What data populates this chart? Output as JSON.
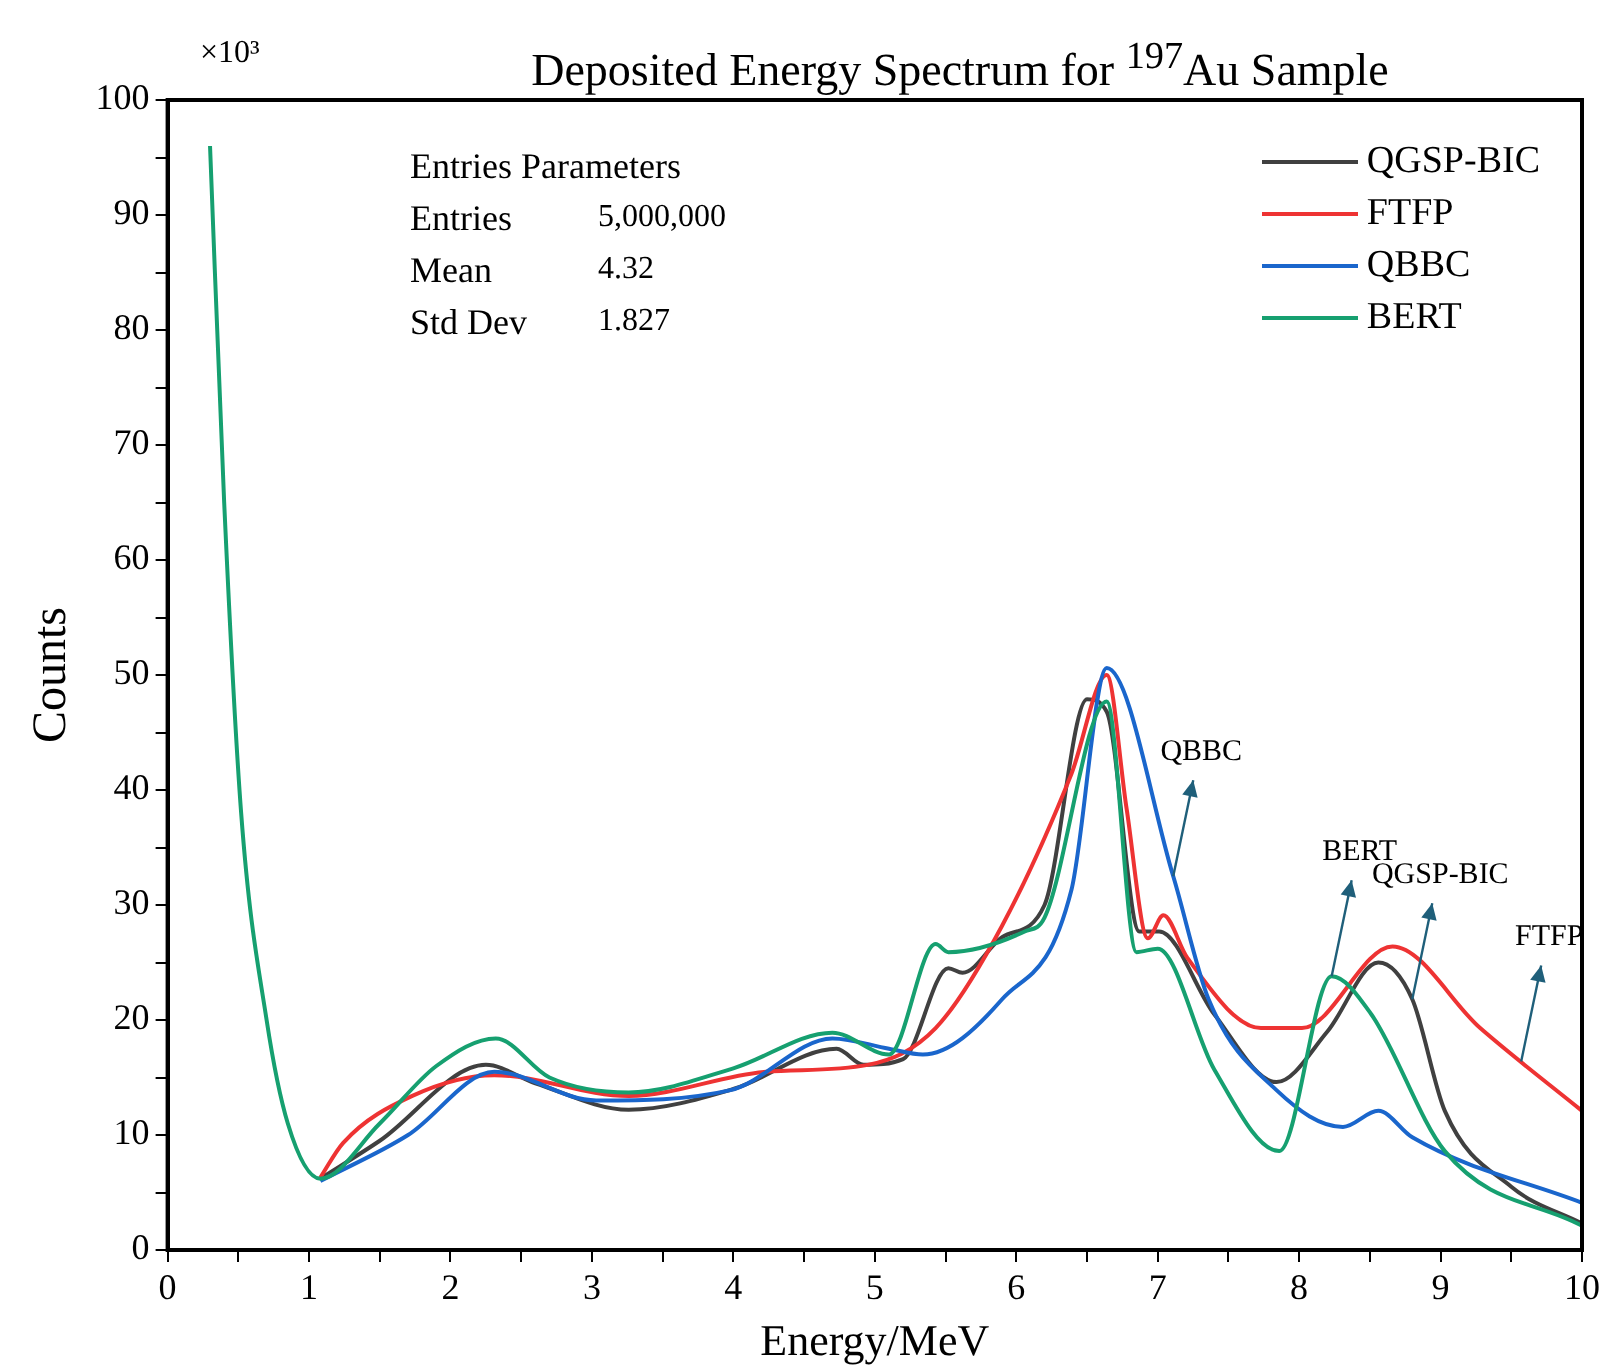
{
  "chart_data": {
    "type": "line",
    "title": "Deposited Energy Spectrum for $^{197}$Au Sample",
    "xlabel": "Energy/MeV",
    "ylabel": "Counts",
    "xlim": [
      0,
      10
    ],
    "xticks": [
      0,
      {
        "value": 0.5,
        "label": null
      },
      1,
      {
        "value": 1.5,
        "label": null
      },
      2,
      {
        "value": 2.5,
        "label": null
      },
      3,
      {
        "value": 3.5,
        "label": null
      },
      4,
      {
        "value": 4.5,
        "label": null
      },
      5,
      {
        "value": 5.5,
        "label": null
      },
      6,
      {
        "value": 6.5,
        "label": null
      },
      7,
      {
        "value": 7.5,
        "label": null
      },
      8,
      {
        "value": 8.5,
        "label": null
      },
      9,
      {
        "value": 9.5,
        "label": null
      },
      10
    ],
    "ylim": [
      0,
      100
    ],
    "yticks": [
      0,
      {
        "value": 5,
        "label": null
      },
      10,
      {
        "value": 15,
        "label": null
      },
      20,
      {
        "value": 25,
        "label": null
      },
      30,
      {
        "value": 35,
        "label": null
      },
      40,
      {
        "value": 45,
        "label": null
      },
      50,
      {
        "value": 55,
        "label": null
      },
      60,
      {
        "value": 65,
        "label": null
      },
      70,
      {
        "value": 75,
        "label": null
      },
      80,
      {
        "value": 85,
        "label": null
      },
      90,
      {
        "value": 95,
        "label": null
      },
      100
    ],
    "grid": false,
    "legend": "top right",
    "marker": "none",
    "line_style": "solid",
    "annotations": [
      "×10³",
      "Entries Parameters",
      "Entries",
      "5,000,000",
      "Mean",
      "4.32",
      "Std Dev",
      "1.827",
      {
        "text": "QBBC",
        "x": 7.11,
        "y": 32.5
      },
      {
        "text": "BERT",
        "x": 8.23,
        "y": 23.8
      },
      {
        "text": "QGSP-BIC",
        "x": 8.8,
        "y": 21.8
      },
      {
        "text": "FTFP",
        "x": 9.57,
        "y": 16.4
      }
    ],
    "series": [
      {
        "name": "QGSP-BIC",
        "color": "#404040",
        "x": [
          1.08,
          1.5,
          2.25,
          2.6,
          3.26,
          4.0,
          4.73,
          4.92,
          5.2,
          5.52,
          5.62,
          5.9,
          6.2,
          6.5,
          6.64,
          6.87,
          7.01,
          7.4,
          7.84,
          8.2,
          8.56,
          8.8,
          9.03,
          9.5,
          10
        ],
        "values": [
          6.2,
          9.5,
          16.1,
          14.5,
          12.2,
          14.0,
          17.5,
          16.1,
          16.6,
          24.5,
          24.1,
          27.2,
          30,
          47.9,
          46.8,
          27.7,
          27.7,
          20.5,
          14.6,
          19,
          25,
          21.8,
          12.1,
          5.5,
          2.3
        ]
      },
      {
        "name": "FTFP",
        "color": "#ee3333",
        "x": [
          1.08,
          1.24,
          1.73,
          2.31,
          3.26,
          4.23,
          4.95,
          5.43,
          5.9,
          6.39,
          6.64,
          6.78,
          6.93,
          7.04,
          7.21,
          7.73,
          8.02,
          8.66,
          9.28,
          10
        ],
        "values": [
          6.3,
          9.3,
          13.4,
          15.2,
          13.4,
          15.5,
          16.1,
          19.3,
          28.2,
          41.4,
          50,
          38.4,
          27.1,
          29.1,
          25.4,
          19.3,
          19.3,
          26.4,
          19.3,
          12.1
        ]
      },
      {
        "name": "QBBC",
        "color": "#1a66cc",
        "x": [
          1.08,
          1.7,
          2.31,
          3.03,
          3.98,
          4.7,
          5.1,
          5.34,
          5.9,
          6.39,
          6.64,
          7.11,
          7.36,
          7.84,
          8.31,
          8.56,
          8.8,
          10
        ],
        "values": [
          6,
          10,
          15.5,
          13,
          13.9,
          18.4,
          17.5,
          17,
          21.8,
          31.3,
          50.6,
          32.5,
          21.8,
          13.9,
          10.7,
          12.1,
          9.8,
          4.1
        ]
      },
      {
        "name": "BERT",
        "color": "#16a070",
        "x": [
          0.3,
          0.4,
          0.52,
          0.7,
          0.85,
          1.08,
          1.5,
          1.9,
          2.32,
          2.7,
          3.26,
          4.0,
          4.7,
          5.1,
          5.43,
          5.52,
          6.06,
          6.2,
          6.64,
          6.85,
          7.0,
          7.4,
          7.86,
          8.23,
          8.51,
          9.03,
          10
        ],
        "values": [
          96,
          65,
          38,
          20,
          11,
          6.2,
          11,
          16,
          18.4,
          15,
          13.7,
          15.8,
          18.9,
          17,
          26.6,
          25.9,
          27.7,
          28.9,
          47.7,
          25.9,
          26.2,
          15.7,
          8.6,
          23.8,
          20.5,
          8.6,
          2.1
        ]
      }
    ]
  }
}
